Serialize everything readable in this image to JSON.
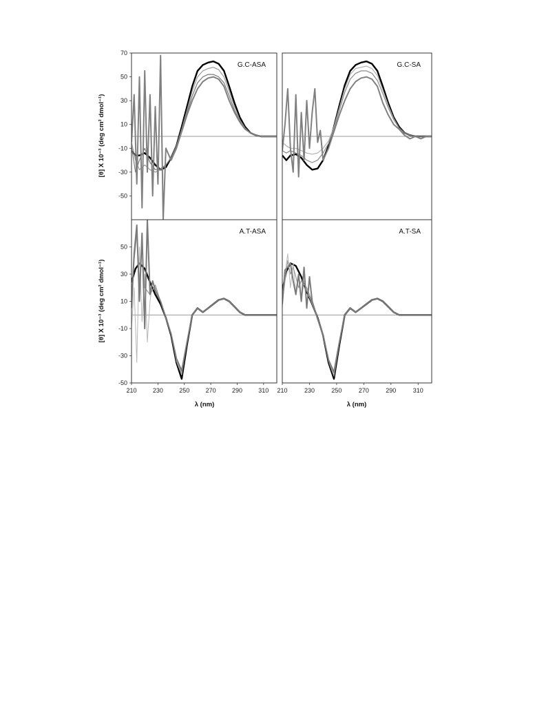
{
  "figure": {
    "ylabel_top": "[θ] X 10⁻³ (deg cm² dmol⁻¹)",
    "ylabel_bottom": "[θ] X 10⁻³ (deg cm² dmol⁻¹)",
    "xlabel_left": "λ (nm)",
    "xlabel_right": "λ (nm)"
  },
  "chart_data": [
    {
      "type": "line",
      "label": "G.C-ASA",
      "xlim": [
        210,
        320
      ],
      "ylim": [
        -70,
        70
      ],
      "yticks": [
        70,
        50,
        30,
        10,
        -10,
        -30,
        -50
      ],
      "series": [
        {
          "color": "#000000",
          "width": 2.4,
          "x": [
            210,
            213,
            216,
            220,
            224,
            228,
            232,
            236,
            240,
            244,
            248,
            252,
            256,
            260,
            264,
            268,
            272,
            276,
            280,
            284,
            288,
            292,
            296,
            300,
            304,
            308,
            312,
            316,
            320
          ],
          "values": [
            -12,
            -16,
            -16,
            -14,
            -18,
            -24,
            -28,
            -26,
            -18,
            -8,
            8,
            25,
            42,
            55,
            60,
            62,
            63,
            61,
            55,
            42,
            28,
            16,
            8,
            3,
            1,
            0,
            0,
            0,
            0
          ]
        },
        {
          "color": "#9a9a9a",
          "width": 1.2,
          "x": [
            210,
            213,
            216,
            220,
            224,
            228,
            232,
            236,
            240,
            244,
            248,
            252,
            256,
            260,
            264,
            268,
            272,
            276,
            280,
            284,
            288,
            292,
            296,
            300,
            304,
            308,
            312,
            316,
            320
          ],
          "values": [
            -5,
            -20,
            -28,
            -24,
            -28,
            -30,
            -28,
            -24,
            -18,
            -8,
            6,
            22,
            38,
            50,
            55,
            57,
            58,
            56,
            50,
            38,
            25,
            14,
            7,
            3,
            1,
            0,
            0,
            0,
            0
          ]
        },
        {
          "color": "#7a7a7a",
          "width": 1.2,
          "x": [
            210,
            213,
            216,
            220,
            224,
            228,
            232,
            236,
            240,
            244,
            248,
            252,
            256,
            260,
            264,
            268,
            272,
            276,
            280,
            284,
            288,
            292,
            296,
            300,
            304,
            308,
            312,
            316,
            320
          ],
          "values": [
            -8,
            -30,
            -20,
            -10,
            -22,
            -28,
            -27,
            -24,
            -18,
            -8,
            5,
            20,
            34,
            45,
            50,
            52,
            52,
            50,
            45,
            34,
            22,
            13,
            6,
            3,
            1,
            0,
            0,
            0,
            0
          ]
        },
        {
          "color": "#808080",
          "width": 2.0,
          "x": [
            210,
            212,
            214,
            216,
            218,
            220,
            222,
            224,
            226,
            228,
            230,
            232,
            234,
            236,
            240,
            244,
            248,
            252,
            256,
            260,
            264,
            268,
            272,
            276,
            280,
            284,
            288,
            292,
            296,
            300,
            304,
            308,
            312,
            316,
            320
          ],
          "values": [
            -5,
            35,
            -40,
            50,
            -60,
            55,
            -30,
            35,
            -50,
            25,
            -40,
            68,
            -70,
            -10,
            -20,
            -10,
            4,
            18,
            30,
            40,
            46,
            49,
            50,
            48,
            42,
            30,
            20,
            12,
            6,
            3,
            1,
            0,
            0,
            0,
            0
          ]
        }
      ]
    },
    {
      "type": "line",
      "label": "G.C-SA",
      "xlim": [
        210,
        320
      ],
      "ylim": [
        -70,
        70
      ],
      "series": [
        {
          "color": "#000000",
          "width": 2.4,
          "x": [
            210,
            213,
            216,
            220,
            224,
            228,
            232,
            236,
            240,
            244,
            248,
            252,
            256,
            260,
            264,
            268,
            272,
            276,
            280,
            284,
            288,
            292,
            296,
            300,
            304,
            308,
            312,
            316,
            320
          ],
          "values": [
            -16,
            -20,
            -16,
            -15,
            -18,
            -24,
            -28,
            -27,
            -20,
            -8,
            8,
            26,
            43,
            55,
            60,
            62,
            63,
            61,
            55,
            42,
            28,
            16,
            8,
            3,
            1,
            0,
            0,
            0,
            0
          ]
        },
        {
          "color": "#b0b0b0",
          "width": 1.2,
          "x": [
            210,
            213,
            216,
            220,
            224,
            228,
            232,
            236,
            240,
            244,
            248,
            252,
            256,
            260,
            264,
            268,
            272,
            276,
            280,
            284,
            288,
            292,
            296,
            300,
            304,
            308,
            312,
            316,
            320
          ],
          "values": [
            -5,
            -8,
            -10,
            -10,
            -12,
            -14,
            -15,
            -14,
            -10,
            -4,
            8,
            24,
            40,
            52,
            57,
            58,
            59,
            57,
            51,
            39,
            26,
            15,
            7,
            3,
            1,
            0,
            0,
            0,
            0
          ]
        },
        {
          "color": "#8a8a8a",
          "width": 1.2,
          "x": [
            210,
            213,
            216,
            220,
            224,
            228,
            232,
            236,
            240,
            244,
            248,
            252,
            256,
            260,
            264,
            268,
            272,
            276,
            280,
            284,
            288,
            292,
            296,
            300,
            304,
            308,
            312,
            316,
            320
          ],
          "values": [
            -12,
            -14,
            -12,
            -14,
            -16,
            -20,
            -22,
            -20,
            -14,
            -6,
            6,
            22,
            37,
            48,
            53,
            55,
            55,
            53,
            47,
            36,
            24,
            14,
            7,
            3,
            1,
            0,
            0,
            0,
            0
          ]
        },
        {
          "color": "#808080",
          "width": 2.0,
          "x": [
            210,
            212,
            214,
            216,
            218,
            220,
            222,
            224,
            226,
            228,
            230,
            232,
            234,
            236,
            238,
            240,
            244,
            248,
            252,
            256,
            260,
            264,
            268,
            272,
            276,
            280,
            284,
            288,
            292,
            296,
            300,
            304,
            308,
            312,
            316,
            320
          ],
          "values": [
            -12,
            10,
            40,
            -10,
            -30,
            35,
            -34,
            20,
            -20,
            30,
            -10,
            20,
            40,
            -5,
            5,
            -20,
            -10,
            4,
            18,
            30,
            40,
            46,
            49,
            50,
            48,
            42,
            28,
            18,
            10,
            6,
            1,
            -2,
            0,
            -2,
            0,
            0
          ]
        }
      ]
    },
    {
      "type": "line",
      "label": "A.T-ASA",
      "xlim": [
        210,
        320
      ],
      "ylim": [
        -50,
        70
      ],
      "yticks": [
        50,
        30,
        10,
        -10,
        -30,
        -50
      ],
      "series": [
        {
          "color": "#000000",
          "width": 2.4,
          "x": [
            210,
            213,
            216,
            220,
            224,
            228,
            232,
            236,
            240,
            244,
            248,
            252,
            256,
            260,
            264,
            268,
            272,
            276,
            280,
            284,
            288,
            292,
            296,
            300,
            304,
            308,
            312,
            316,
            320
          ],
          "values": [
            24,
            34,
            38,
            34,
            24,
            15,
            8,
            -2,
            -15,
            -35,
            -47,
            -22,
            0,
            5,
            2,
            5,
            8,
            11,
            12,
            10,
            6,
            2,
            0,
            0,
            0,
            0,
            0,
            0,
            0
          ]
        },
        {
          "color": "#b8b8b8",
          "width": 1.0,
          "x": [
            210,
            212,
            214,
            216,
            218,
            220,
            222,
            224,
            226,
            228,
            232,
            236,
            240,
            244,
            248,
            252,
            256,
            260,
            264,
            268,
            272,
            276,
            280,
            284,
            288,
            292,
            296,
            300,
            304,
            308,
            312,
            316,
            320
          ],
          "values": [
            -10,
            20,
            -35,
            50,
            -5,
            30,
            -20,
            10,
            25,
            20,
            10,
            -2,
            -14,
            -34,
            -44,
            -20,
            0,
            5,
            2,
            5,
            8,
            11,
            12,
            10,
            6,
            2,
            0,
            0,
            0,
            0,
            0,
            0,
            0
          ]
        },
        {
          "color": "#9a9a9a",
          "width": 1.2,
          "x": [
            210,
            212,
            214,
            216,
            218,
            220,
            224,
            228,
            232,
            236,
            240,
            244,
            248,
            252,
            256,
            260,
            264,
            268,
            272,
            276,
            280,
            284,
            288,
            292,
            296,
            300,
            304,
            308,
            312,
            316,
            320
          ],
          "values": [
            10,
            40,
            60,
            25,
            50,
            20,
            15,
            22,
            10,
            -2,
            -14,
            -33,
            -43,
            -20,
            0,
            5,
            2,
            5,
            8,
            11,
            12,
            10,
            6,
            2,
            0,
            0,
            0,
            0,
            0,
            0,
            0
          ]
        },
        {
          "color": "#7a7a7a",
          "width": 2.0,
          "x": [
            210,
            212,
            214,
            216,
            218,
            220,
            222,
            224,
            226,
            228,
            232,
            236,
            240,
            244,
            248,
            252,
            256,
            260,
            264,
            268,
            272,
            276,
            280,
            284,
            288,
            292,
            296,
            300,
            304,
            308,
            312,
            316,
            320
          ],
          "values": [
            5,
            45,
            66,
            10,
            60,
            -10,
            70,
            15,
            25,
            18,
            10,
            -2,
            -14,
            -32,
            -41,
            -20,
            0,
            5,
            2,
            5,
            8,
            11,
            12,
            10,
            6,
            2,
            0,
            0,
            0,
            0,
            0,
            0,
            0
          ]
        }
      ]
    },
    {
      "type": "line",
      "label": "A.T-SA",
      "xlim": [
        210,
        320
      ],
      "ylim": [
        -50,
        70
      ],
      "series": [
        {
          "color": "#000000",
          "width": 2.4,
          "x": [
            210,
            213,
            216,
            220,
            224,
            228,
            232,
            236,
            240,
            244,
            248,
            252,
            256,
            260,
            264,
            268,
            272,
            276,
            280,
            284,
            288,
            292,
            296,
            300,
            304,
            308,
            312,
            316,
            320
          ],
          "values": [
            18,
            32,
            38,
            36,
            28,
            17,
            8,
            -2,
            -15,
            -35,
            -47,
            -22,
            0,
            5,
            2,
            5,
            8,
            11,
            12,
            10,
            6,
            2,
            0,
            0,
            0,
            0,
            0,
            0,
            0
          ]
        },
        {
          "color": "#b8b8b8",
          "width": 1.0,
          "x": [
            210,
            212,
            214,
            216,
            218,
            220,
            222,
            224,
            226,
            228,
            232,
            236,
            240,
            244,
            248,
            252,
            256,
            260,
            264,
            268,
            272,
            276,
            280,
            284,
            288,
            292,
            296,
            300,
            304,
            308,
            312,
            316,
            320
          ],
          "values": [
            5,
            30,
            45,
            20,
            38,
            15,
            30,
            10,
            25,
            18,
            8,
            -3,
            -15,
            -33,
            -43,
            -20,
            0,
            5,
            2,
            5,
            8,
            11,
            12,
            10,
            6,
            2,
            0,
            0,
            0,
            0,
            0,
            0,
            0
          ]
        },
        {
          "color": "#9a9a9a",
          "width": 1.2,
          "x": [
            210,
            212,
            214,
            216,
            218,
            220,
            222,
            224,
            228,
            232,
            236,
            240,
            244,
            248,
            252,
            256,
            260,
            264,
            268,
            272,
            276,
            280,
            284,
            288,
            292,
            296,
            300,
            304,
            308,
            312,
            316,
            320
          ],
          "values": [
            10,
            25,
            40,
            30,
            35,
            28,
            20,
            25,
            20,
            10,
            -2,
            -14,
            -34,
            -45,
            -21,
            0,
            5,
            2,
            5,
            8,
            11,
            12,
            10,
            6,
            2,
            0,
            0,
            0,
            0,
            0,
            0,
            0
          ]
        },
        {
          "color": "#7a7a7a",
          "width": 2.0,
          "x": [
            210,
            212,
            214,
            216,
            218,
            220,
            222,
            224,
            226,
            228,
            230,
            232,
            236,
            240,
            244,
            248,
            252,
            256,
            260,
            264,
            268,
            272,
            276,
            280,
            284,
            288,
            292,
            296,
            300,
            304,
            308,
            312,
            316,
            320
          ],
          "values": [
            8,
            33,
            35,
            38,
            25,
            15,
            30,
            10,
            35,
            5,
            28,
            10,
            -3,
            -15,
            -33,
            -42,
            -20,
            0,
            5,
            2,
            5,
            8,
            11,
            12,
            10,
            6,
            2,
            0,
            0,
            0,
            0,
            0,
            0,
            0
          ]
        }
      ]
    }
  ]
}
